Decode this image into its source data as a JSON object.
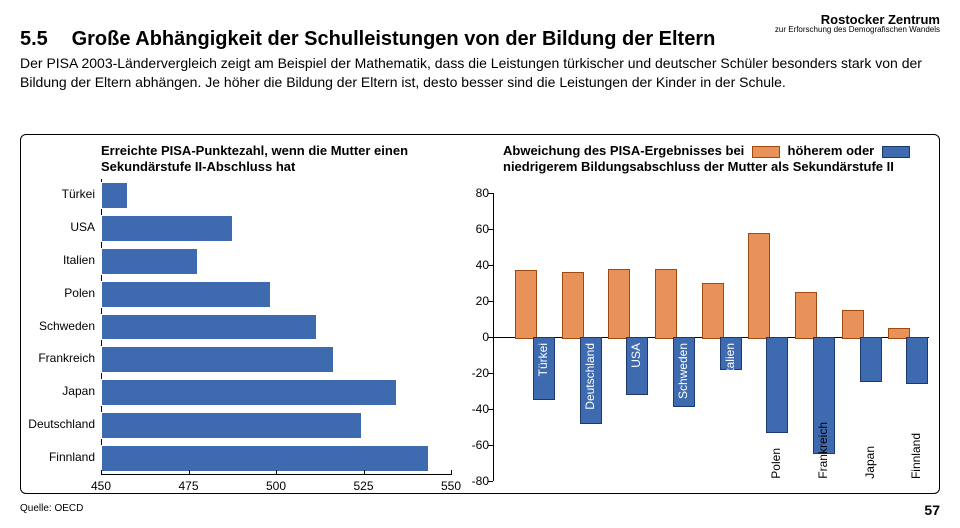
{
  "brand": {
    "name": "Rostocker Zentrum",
    "sub": "zur Erforschung des Demografischen Wandels"
  },
  "section": {
    "num": "5.5",
    "title": "Große Abhängigkeit der Schulleistungen von der Bildung der Eltern",
    "body": "Der PISA 2003-Ländervergleich zeigt am Beispiel der Mathematik, dass die Leistungen türkischer und deutscher Schüler besonders stark von der Bildung der Eltern abhängen. Je höher die Bildung der Eltern ist, desto besser sind die Leistungen der Kinder in der Schule."
  },
  "left_chart": {
    "title": "Erreichte PISA-Punktezahl, wenn die Mutter einen Sekundärstufe II-Abschluss hat",
    "xmin": 450,
    "xmax": 550,
    "xticks": [
      450,
      475,
      500,
      525,
      550
    ],
    "bar_color": "#3e6bb0",
    "bar_border": "#ffffff",
    "items": [
      {
        "label": "Türkei",
        "value": 457
      },
      {
        "label": "USA",
        "value": 487
      },
      {
        "label": "Italien",
        "value": 477
      },
      {
        "label": "Polen",
        "value": 498
      },
      {
        "label": "Schweden",
        "value": 511
      },
      {
        "label": "Frankreich",
        "value": 516
      },
      {
        "label": "Japan",
        "value": 534
      },
      {
        "label": "Deutschland",
        "value": 524
      },
      {
        "label": "Finnland",
        "value": 543
      }
    ]
  },
  "right_chart": {
    "title_pre": "Abweichung des PISA-Ergebnisses bei",
    "title_high": "höherem",
    "title_mid": "oder",
    "title_low": "niedrigerem Bildungsabschluss der Mutter",
    "title_post": "als Sekundärstufe II",
    "ymin": -80,
    "ymax": 80,
    "yticks": [
      80,
      60,
      40,
      20,
      0,
      -20,
      -40,
      -60,
      -80
    ],
    "high_color": "#e8925a",
    "high_border": "#9c4a10",
    "low_color": "#3e6bb0",
    "low_border": "#1c3a6e",
    "items": [
      {
        "label": "Türkei",
        "high": 37,
        "low": -34,
        "label_in_bar": true
      },
      {
        "label": "Deutschland",
        "high": 36,
        "low": -47,
        "label_in_bar": true
      },
      {
        "label": "USA",
        "high": 38,
        "low": -31,
        "label_in_bar": true
      },
      {
        "label": "Schweden",
        "high": 38,
        "low": -38,
        "label_in_bar": true
      },
      {
        "label": "Italien",
        "high": 30,
        "low": -17,
        "label_in_bar": true
      },
      {
        "label": "Polen",
        "high": 58,
        "low": -52,
        "label_in_bar": false
      },
      {
        "label": "Frankreich",
        "high": 25,
        "low": -64,
        "label_in_bar": false
      },
      {
        "label": "Japan",
        "high": 15,
        "low": -24,
        "label_in_bar": false
      },
      {
        "label": "Finnland",
        "high": 5,
        "low": -25,
        "label_in_bar": false
      }
    ]
  },
  "source": "Quelle: OECD",
  "page": "57"
}
